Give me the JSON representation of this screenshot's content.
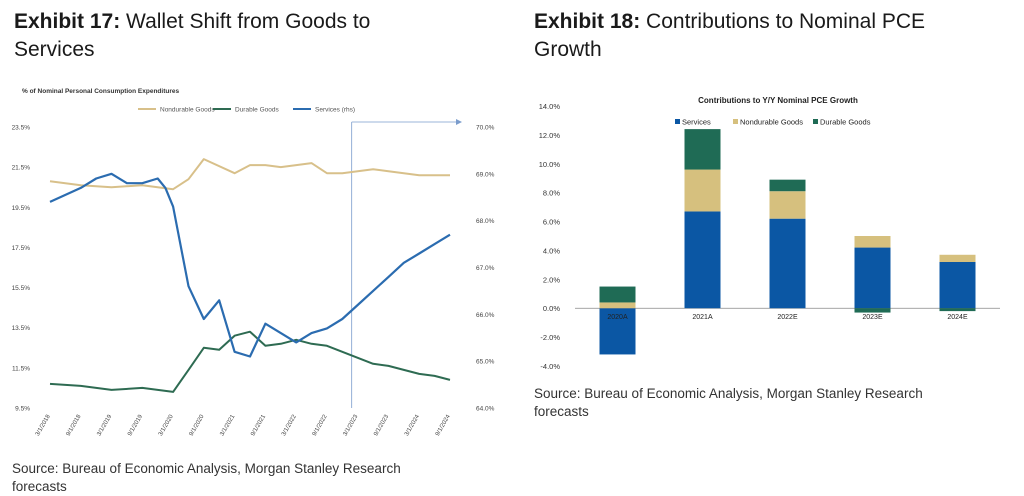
{
  "exhibit17": {
    "label": "Exhibit 17:",
    "title_line1": "Wallet Shift from Goods to",
    "title_line2": "Services",
    "source_line1": "Source: Bureau of Economic Analysis, Morgan Stanley Research",
    "source_line2": "forecasts"
  },
  "exhibit18": {
    "label": "Exhibit 18:",
    "title_line1": "Contributions to Nominal PCE",
    "title_line2": "Growth",
    "source_line1": "Source: Bureau of Economic Analysis, Morgan Stanley Research",
    "source_line2": "forecasts"
  },
  "chart_data": [
    {
      "type": "line",
      "title": "% of Nominal Personal Consumption Expenditures",
      "x": [
        "3/1/2018",
        "9/1/2018",
        "3/1/2019",
        "9/1/2019",
        "3/1/2020",
        "9/1/2020",
        "3/1/2021",
        "9/1/2021",
        "3/1/2022",
        "9/1/2022",
        "3/1/2023",
        "9/1/2023",
        "3/1/2024",
        "9/1/2024"
      ],
      "ylim_left": [
        9.5,
        23.5
      ],
      "yticks_left": [
        "23.5%",
        "21.5%",
        "19.5%",
        "17.5%",
        "15.5%",
        "13.5%",
        "11.5%",
        "9.5%"
      ],
      "ylim_right": [
        64.0,
        70.0
      ],
      "yticks_right": [
        "70.0%",
        "69.0%",
        "68.0%",
        "67.0%",
        "66.0%",
        "65.0%",
        "64.0%"
      ],
      "series": [
        {
          "name": "Nondurable Goods",
          "axis": "left",
          "color": "#d8c08a",
          "points": [
            [
              0,
              20.8
            ],
            [
              1,
              20.6
            ],
            [
              2,
              20.5
            ],
            [
              3,
              20.6
            ],
            [
              4,
              20.4
            ],
            [
              4.5,
              20.9
            ],
            [
              5,
              21.9
            ],
            [
              6,
              21.2
            ],
            [
              6.5,
              21.6
            ],
            [
              7,
              21.6
            ],
            [
              7.5,
              21.5
            ],
            [
              8,
              21.6
            ],
            [
              8.5,
              21.7
            ],
            [
              9,
              21.2
            ],
            [
              9.5,
              21.2
            ],
            [
              10,
              21.3
            ],
            [
              10.5,
              21.4
            ],
            [
              11,
              21.3
            ],
            [
              12,
              21.1
            ],
            [
              12.5,
              21.1
            ],
            [
              13,
              21.1
            ]
          ]
        },
        {
          "name": "Durable Goods",
          "axis": "left",
          "color": "#2e6b52",
          "points": [
            [
              0,
              10.7
            ],
            [
              1,
              10.6
            ],
            [
              2,
              10.4
            ],
            [
              3,
              10.5
            ],
            [
              4,
              10.3
            ],
            [
              4.5,
              11.4
            ],
            [
              5,
              12.5
            ],
            [
              5.5,
              12.4
            ],
            [
              6,
              13.1
            ],
            [
              6.5,
              13.3
            ],
            [
              7,
              12.6
            ],
            [
              7.5,
              12.7
            ],
            [
              8,
              12.9
            ],
            [
              8.5,
              12.7
            ],
            [
              9,
              12.6
            ],
            [
              9.5,
              12.3
            ],
            [
              10,
              12.0
            ],
            [
              10.5,
              11.7
            ],
            [
              11,
              11.6
            ],
            [
              11.5,
              11.4
            ],
            [
              12,
              11.2
            ],
            [
              12.5,
              11.1
            ],
            [
              13,
              10.9
            ]
          ]
        },
        {
          "name": "Services (rhs)",
          "axis": "right",
          "color": "#2b6cb0",
          "points": [
            [
              0,
              68.4
            ],
            [
              1,
              68.7
            ],
            [
              1.5,
              68.9
            ],
            [
              2,
              69.0
            ],
            [
              2.5,
              68.8
            ],
            [
              3,
              68.8
            ],
            [
              3.5,
              68.9
            ],
            [
              3.75,
              68.7
            ],
            [
              4,
              68.3
            ],
            [
              4.5,
              66.6
            ],
            [
              5,
              65.9
            ],
            [
              5.5,
              66.3
            ],
            [
              6,
              65.2
            ],
            [
              6.5,
              65.1
            ],
            [
              7,
              65.8
            ],
            [
              7.5,
              65.6
            ],
            [
              8,
              65.4
            ],
            [
              8.5,
              65.6
            ],
            [
              9,
              65.7
            ],
            [
              9.5,
              65.9
            ],
            [
              10,
              66.2
            ],
            [
              10.5,
              66.5
            ],
            [
              11,
              66.8
            ],
            [
              11.5,
              67.1
            ],
            [
              12,
              67.3
            ],
            [
              12.5,
              67.5
            ],
            [
              13,
              67.7
            ]
          ]
        }
      ],
      "forecast_start": "3/1/2023"
    },
    {
      "type": "bar",
      "title": "Contributions to Y/Y Nominal PCE Growth",
      "categories": [
        "2020A",
        "2021A",
        "2022E",
        "2023E",
        "2024E"
      ],
      "ylim": [
        -4.0,
        14.0
      ],
      "yticks": [
        "14.0%",
        "12.0%",
        "10.0%",
        "8.0%",
        "6.0%",
        "4.0%",
        "2.0%",
        "0.0%",
        "-2.0%",
        "-4.0%"
      ],
      "series": [
        {
          "name": "Services",
          "color": "#0b57a4",
          "values": [
            -3.2,
            6.7,
            6.2,
            4.2,
            3.2
          ]
        },
        {
          "name": "Nondurable Goods",
          "color": "#d6c07e",
          "values": [
            0.4,
            2.9,
            1.9,
            0.8,
            0.5
          ]
        },
        {
          "name": "Durable Goods",
          "color": "#1f6b55",
          "values": [
            1.1,
            2.8,
            0.8,
            -0.3,
            -0.2
          ]
        }
      ]
    }
  ]
}
